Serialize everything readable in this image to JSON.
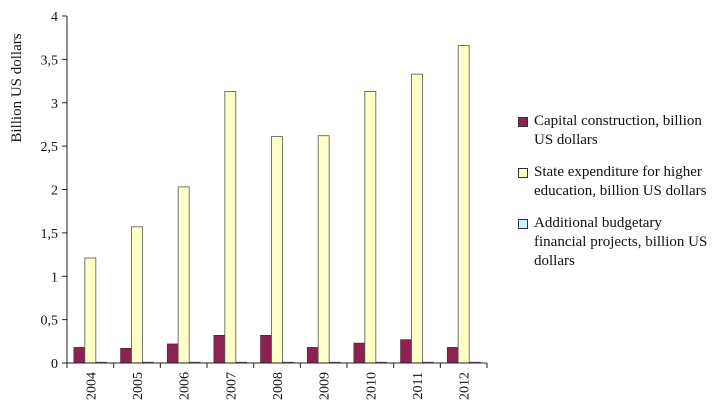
{
  "chart_data": {
    "type": "bar",
    "title": "",
    "xlabel": "",
    "ylabel": "Billion US dollars",
    "ylim": [
      0,
      4
    ],
    "yticks": [
      "0",
      "0,5",
      "1",
      "1,5",
      "2",
      "2,5",
      "3",
      "3,5",
      "4"
    ],
    "categories": [
      "2004",
      "2005",
      "2006",
      "2007",
      "2008",
      "2009",
      "2010",
      "2011",
      "2012"
    ],
    "grid": false,
    "legend_position": "right",
    "series": [
      {
        "name": "Capital construction, billion US dollars",
        "color": "#8B2252",
        "values": [
          0.18,
          0.17,
          0.22,
          0.32,
          0.32,
          0.18,
          0.23,
          0.27,
          0.18
        ]
      },
      {
        "name": "State expenditure for higher education, billion US dollars",
        "color": "#FFFFC8",
        "values": [
          1.21,
          1.57,
          2.03,
          3.13,
          2.61,
          2.62,
          3.13,
          3.33,
          3.66
        ]
      },
      {
        "name": "Additional budgetary financial projects, billion US dollars",
        "color": "#CCF2FA",
        "values": [
          0.01,
          0.01,
          0.01,
          0.01,
          0.01,
          0.01,
          0.01,
          0.01,
          0.01
        ]
      }
    ]
  }
}
